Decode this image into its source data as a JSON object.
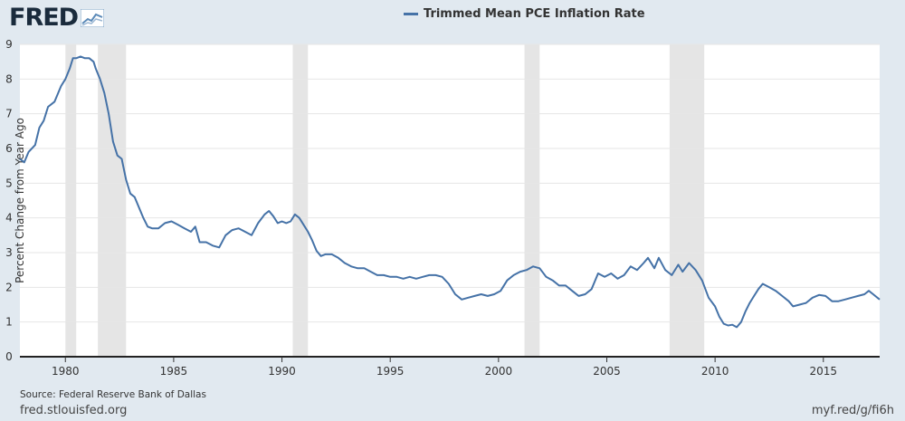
{
  "header": {
    "logo_text": "FRED",
    "logo_icon": "fred-trend-icon"
  },
  "chart_data": {
    "type": "line",
    "title": "",
    "legend": "Trimmed Mean PCE Inflation Rate",
    "legend_placement": "top-center",
    "xlabel": "",
    "ylabel": "Percent Change from Year Ago",
    "xlim": [
      1977.9,
      2017.6
    ],
    "ylim": [
      0,
      9
    ],
    "y_ticks": [
      0,
      1,
      2,
      3,
      4,
      5,
      6,
      7,
      8,
      9
    ],
    "x_ticks": [
      1980,
      1985,
      1990,
      1995,
      2000,
      2005,
      2010,
      2015
    ],
    "grid": "horizontal",
    "line_color": "#4572a7",
    "recession_color": "#e5e5e5",
    "recessions": [
      [
        1980.0,
        1980.5
      ],
      [
        1981.5,
        1982.8
      ],
      [
        1990.5,
        1991.2
      ],
      [
        2001.2,
        2001.9
      ],
      [
        2007.9,
        2009.5
      ]
    ],
    "series": [
      {
        "name": "Trimmed Mean PCE Inflation Rate",
        "points": [
          [
            1977.9,
            5.7
          ],
          [
            1978.1,
            5.6
          ],
          [
            1978.3,
            5.9
          ],
          [
            1978.6,
            6.1
          ],
          [
            1978.8,
            6.6
          ],
          [
            1979.0,
            6.8
          ],
          [
            1979.2,
            7.2
          ],
          [
            1979.5,
            7.35
          ],
          [
            1979.8,
            7.8
          ],
          [
            1980.0,
            8.0
          ],
          [
            1980.2,
            8.3
          ],
          [
            1980.35,
            8.6
          ],
          [
            1980.5,
            8.6
          ],
          [
            1980.7,
            8.65
          ],
          [
            1980.9,
            8.6
          ],
          [
            1981.1,
            8.6
          ],
          [
            1981.3,
            8.5
          ],
          [
            1981.4,
            8.3
          ],
          [
            1981.6,
            8.0
          ],
          [
            1981.8,
            7.6
          ],
          [
            1982.0,
            7.0
          ],
          [
            1982.2,
            6.2
          ],
          [
            1982.4,
            5.8
          ],
          [
            1982.6,
            5.7
          ],
          [
            1982.8,
            5.1
          ],
          [
            1983.0,
            4.7
          ],
          [
            1983.2,
            4.6
          ],
          [
            1983.4,
            4.3
          ],
          [
            1983.6,
            4.0
          ],
          [
            1983.8,
            3.75
          ],
          [
            1984.0,
            3.7
          ],
          [
            1984.3,
            3.7
          ],
          [
            1984.6,
            3.85
          ],
          [
            1984.9,
            3.9
          ],
          [
            1985.2,
            3.8
          ],
          [
            1985.5,
            3.7
          ],
          [
            1985.8,
            3.6
          ],
          [
            1986.0,
            3.75
          ],
          [
            1986.2,
            3.3
          ],
          [
            1986.5,
            3.3
          ],
          [
            1986.8,
            3.2
          ],
          [
            1987.1,
            3.15
          ],
          [
            1987.4,
            3.5
          ],
          [
            1987.7,
            3.65
          ],
          [
            1988.0,
            3.7
          ],
          [
            1988.3,
            3.6
          ],
          [
            1988.6,
            3.5
          ],
          [
            1988.9,
            3.85
          ],
          [
            1989.2,
            4.1
          ],
          [
            1989.4,
            4.2
          ],
          [
            1989.6,
            4.05
          ],
          [
            1989.8,
            3.85
          ],
          [
            1990.0,
            3.9
          ],
          [
            1990.2,
            3.85
          ],
          [
            1990.4,
            3.9
          ],
          [
            1990.6,
            4.1
          ],
          [
            1990.8,
            4.0
          ],
          [
            1991.0,
            3.8
          ],
          [
            1991.2,
            3.6
          ],
          [
            1991.4,
            3.35
          ],
          [
            1991.6,
            3.05
          ],
          [
            1991.8,
            2.9
          ],
          [
            1992.0,
            2.95
          ],
          [
            1992.3,
            2.95
          ],
          [
            1992.6,
            2.85
          ],
          [
            1992.9,
            2.7
          ],
          [
            1993.2,
            2.6
          ],
          [
            1993.5,
            2.55
          ],
          [
            1993.8,
            2.55
          ],
          [
            1994.1,
            2.45
          ],
          [
            1994.4,
            2.35
          ],
          [
            1994.7,
            2.35
          ],
          [
            1995.0,
            2.3
          ],
          [
            1995.3,
            2.3
          ],
          [
            1995.6,
            2.25
          ],
          [
            1995.9,
            2.3
          ],
          [
            1996.2,
            2.25
          ],
          [
            1996.5,
            2.3
          ],
          [
            1996.8,
            2.35
          ],
          [
            1997.1,
            2.35
          ],
          [
            1997.4,
            2.3
          ],
          [
            1997.7,
            2.1
          ],
          [
            1998.0,
            1.8
          ],
          [
            1998.3,
            1.65
          ],
          [
            1998.6,
            1.7
          ],
          [
            1998.9,
            1.75
          ],
          [
            1999.2,
            1.8
          ],
          [
            1999.5,
            1.75
          ],
          [
            1999.8,
            1.8
          ],
          [
            2000.1,
            1.9
          ],
          [
            2000.4,
            2.2
          ],
          [
            2000.7,
            2.35
          ],
          [
            2001.0,
            2.45
          ],
          [
            2001.3,
            2.5
          ],
          [
            2001.6,
            2.6
          ],
          [
            2001.9,
            2.55
          ],
          [
            2002.2,
            2.3
          ],
          [
            2002.5,
            2.2
          ],
          [
            2002.8,
            2.05
          ],
          [
            2003.1,
            2.05
          ],
          [
            2003.4,
            1.9
          ],
          [
            2003.7,
            1.75
          ],
          [
            2004.0,
            1.8
          ],
          [
            2004.3,
            1.95
          ],
          [
            2004.6,
            2.4
          ],
          [
            2004.9,
            2.3
          ],
          [
            2005.2,
            2.4
          ],
          [
            2005.5,
            2.25
          ],
          [
            2005.8,
            2.35
          ],
          [
            2006.1,
            2.6
          ],
          [
            2006.4,
            2.5
          ],
          [
            2006.7,
            2.7
          ],
          [
            2006.9,
            2.85
          ],
          [
            2007.2,
            2.55
          ],
          [
            2007.4,
            2.85
          ],
          [
            2007.7,
            2.5
          ],
          [
            2008.0,
            2.35
          ],
          [
            2008.3,
            2.65
          ],
          [
            2008.5,
            2.45
          ],
          [
            2008.8,
            2.7
          ],
          [
            2009.1,
            2.5
          ],
          [
            2009.4,
            2.2
          ],
          [
            2009.7,
            1.7
          ],
          [
            2010.0,
            1.45
          ],
          [
            2010.2,
            1.15
          ],
          [
            2010.4,
            0.95
          ],
          [
            2010.6,
            0.9
          ],
          [
            2010.8,
            0.92
          ],
          [
            2011.0,
            0.85
          ],
          [
            2011.2,
            1.0
          ],
          [
            2011.4,
            1.3
          ],
          [
            2011.6,
            1.55
          ],
          [
            2011.8,
            1.75
          ],
          [
            2012.0,
            1.95
          ],
          [
            2012.2,
            2.1
          ],
          [
            2012.5,
            2.0
          ],
          [
            2012.8,
            1.9
          ],
          [
            2013.1,
            1.75
          ],
          [
            2013.4,
            1.6
          ],
          [
            2013.6,
            1.45
          ],
          [
            2013.9,
            1.5
          ],
          [
            2014.2,
            1.55
          ],
          [
            2014.5,
            1.7
          ],
          [
            2014.8,
            1.78
          ],
          [
            2015.1,
            1.75
          ],
          [
            2015.4,
            1.6
          ],
          [
            2015.7,
            1.6
          ],
          [
            2016.0,
            1.65
          ],
          [
            2016.3,
            1.7
          ],
          [
            2016.6,
            1.75
          ],
          [
            2016.9,
            1.8
          ],
          [
            2017.1,
            1.9
          ],
          [
            2017.3,
            1.8
          ],
          [
            2017.6,
            1.65
          ]
        ]
      }
    ]
  },
  "source": "Source: Federal Reserve Bank of Dallas",
  "footer": {
    "left": "fred.stlouisfed.org",
    "right": "myf.red/g/fi6h"
  }
}
